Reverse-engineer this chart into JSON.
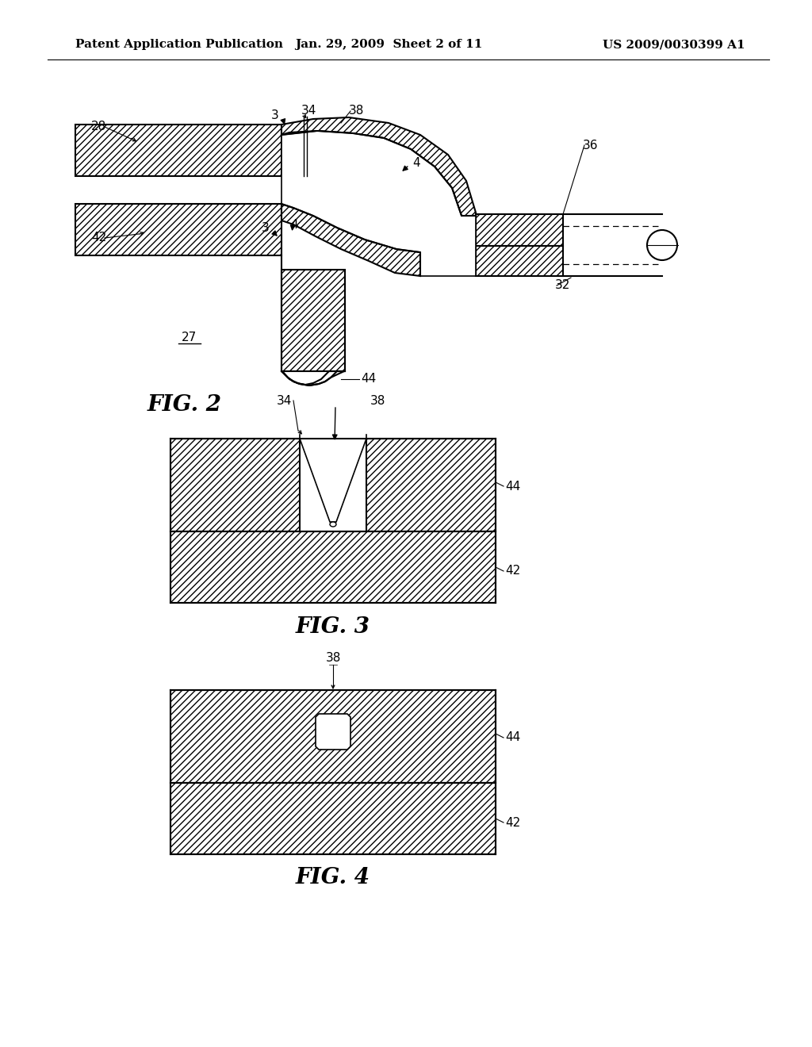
{
  "title_left": "Patent Application Publication",
  "title_center": "Jan. 29, 2009  Sheet 2 of 11",
  "title_right": "US 2009/0030399 A1",
  "fig2_label": "FIG. 2",
  "fig3_label": "FIG. 3",
  "fig4_label": "FIG. 4",
  "bg_color": "#ffffff",
  "header_fontsize": 11,
  "label_fontsize": 11,
  "fig_label_fontsize": 20
}
